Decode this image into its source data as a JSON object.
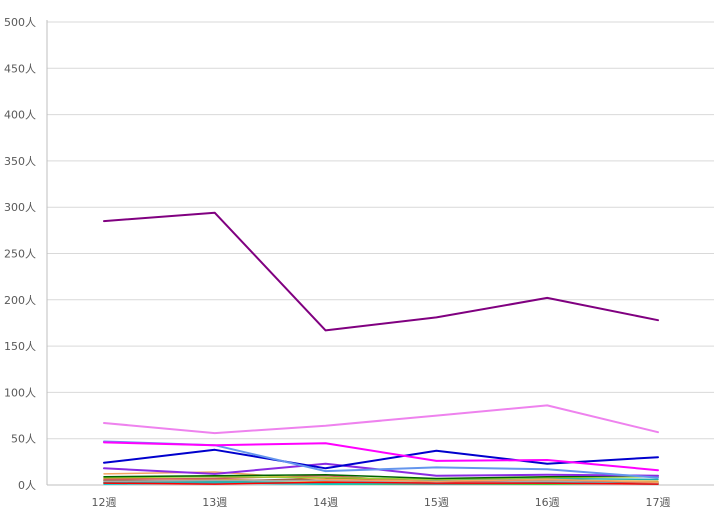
{
  "chart_data": {
    "type": "line",
    "title": "",
    "xlabel": "",
    "ylabel": "",
    "categories": [
      "12週",
      "13週",
      "14週",
      "15週",
      "16週",
      "17週"
    ],
    "ylim": [
      0,
      500
    ],
    "y_ticks": [
      "0人",
      "50人",
      "100人",
      "150人",
      "200人",
      "250人",
      "300人",
      "350人",
      "400人",
      "450人",
      "500人"
    ],
    "grid": true,
    "legend": "none",
    "series": [
      {
        "color": "#800080",
        "values": [
          285,
          294,
          167,
          181,
          202,
          178
        ]
      },
      {
        "color": "#ee82ee",
        "values": [
          67,
          56,
          64,
          75,
          86,
          57
        ]
      },
      {
        "color": "#ff00ff",
        "values": [
          46,
          43,
          45,
          26,
          27,
          16
        ]
      },
      {
        "color": "#6495ed",
        "values": [
          47,
          43,
          15,
          19,
          17,
          8
        ]
      },
      {
        "color": "#0000cd",
        "values": [
          24,
          38,
          18,
          37,
          23,
          30
        ]
      },
      {
        "color": "#8a2be2",
        "values": [
          18,
          12,
          23,
          10,
          11,
          10
        ]
      },
      {
        "color": "#006400",
        "values": [
          9,
          10,
          11,
          7,
          9,
          10
        ]
      },
      {
        "color": "#9acd32",
        "values": [
          8,
          9,
          8,
          6,
          8,
          9
        ]
      },
      {
        "color": "#f4a460",
        "values": [
          12,
          14,
          6,
          4,
          6,
          3
        ]
      },
      {
        "color": "#cd5c5c",
        "values": [
          6,
          7,
          10,
          3,
          6,
          2
        ]
      },
      {
        "color": "#ff0000",
        "values": [
          2,
          1,
          3,
          2,
          2,
          1
        ]
      },
      {
        "color": "#a9a9a9",
        "values": [
          4,
          5,
          5,
          3,
          4,
          3
        ]
      },
      {
        "color": "#20b2aa",
        "values": [
          3,
          4,
          2,
          5,
          7,
          6
        ]
      },
      {
        "color": "#00ced1",
        "values": [
          1,
          2,
          1,
          2,
          3,
          1
        ]
      },
      {
        "color": "#8b4513",
        "values": [
          5,
          4,
          7,
          4,
          3,
          2
        ]
      },
      {
        "color": "#daa520",
        "values": [
          7,
          6,
          4,
          5,
          5,
          4
        ]
      },
      {
        "color": "#708090",
        "values": [
          3,
          3,
          2,
          1,
          2,
          1
        ]
      },
      {
        "color": "#32cd32",
        "values": [
          2,
          3,
          1,
          1,
          1,
          2
        ]
      }
    ]
  }
}
